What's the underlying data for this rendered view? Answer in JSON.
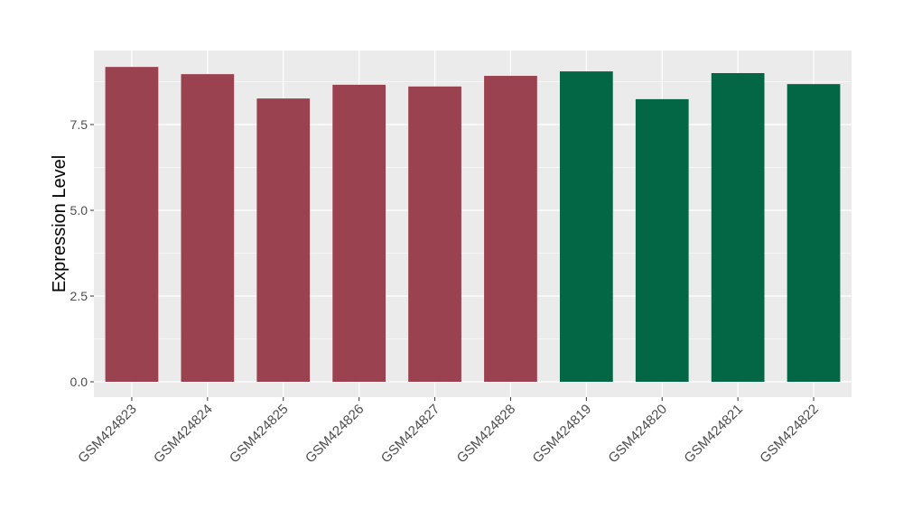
{
  "chart_data": {
    "type": "bar",
    "title": "",
    "xlabel": "",
    "ylabel": "Expression Level",
    "ylim": [
      -0.5,
      9.7
    ],
    "yticks": [
      "0.0",
      "2.5",
      "5.0",
      "7.5"
    ],
    "grid": true,
    "categories": [
      "GSM424823",
      "GSM424824",
      "GSM424825",
      "GSM424826",
      "GSM424827",
      "GSM424828",
      "GSM424819",
      "GSM424820",
      "GSM424821",
      "GSM424822"
    ],
    "values": [
      9.18,
      8.97,
      8.26,
      8.66,
      8.61,
      8.92,
      9.05,
      8.24,
      9.0,
      8.68
    ],
    "bar_colors": [
      "#9A4250",
      "#9A4250",
      "#9A4250",
      "#9A4250",
      "#9A4250",
      "#9A4250",
      "#036645",
      "#036645",
      "#036645",
      "#036645"
    ],
    "panel_background": "#EBEBEB"
  }
}
